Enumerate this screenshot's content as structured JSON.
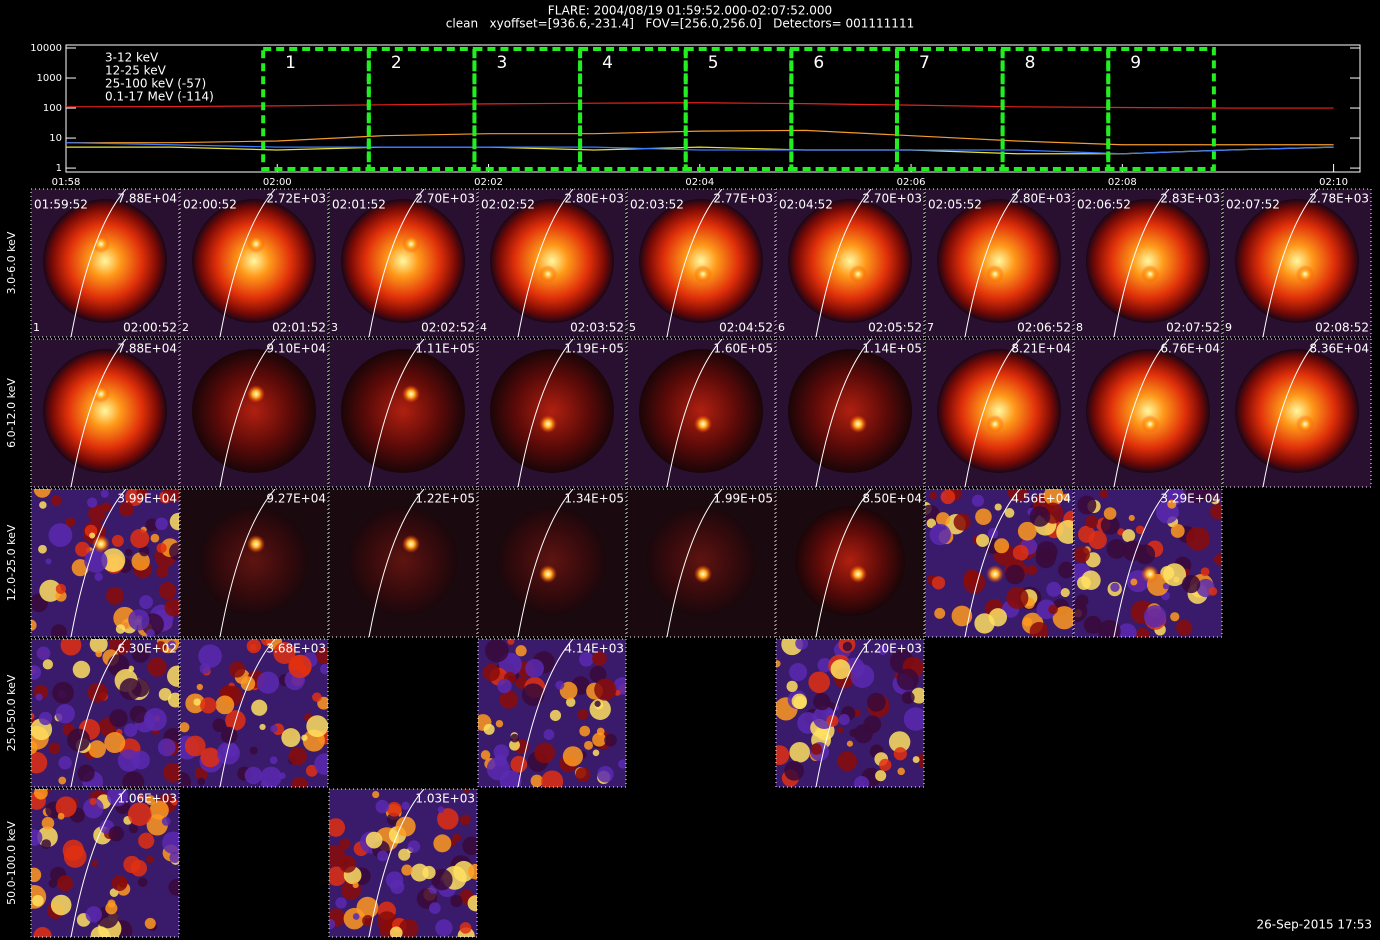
{
  "header": {
    "title": "FLARE: 2004/08/19 01:59:52.000-02:07:52.000",
    "subtitle": "clean   xyoffset=[936.6,-231.4]   FOV=[256.0,256.0]   Detectors= 001111111"
  },
  "chart_data": {
    "type": "line",
    "x": [
      "01:58",
      "01:59",
      "02:00",
      "02:01",
      "02:02",
      "02:03",
      "02:04",
      "02:05",
      "02:06",
      "02:07",
      "02:08",
      "02:09",
      "02:10"
    ],
    "xlim": [
      "01:58",
      "02:10:15"
    ],
    "xticks": [
      "01:58",
      "02:00",
      "02:02",
      "02:04",
      "02:06",
      "02:08",
      "02:10"
    ],
    "ylim": [
      0.74,
      12600
    ],
    "yticks": [
      1,
      10,
      100,
      1000,
      10000
    ],
    "log_y": true,
    "series": [
      {
        "name": "3-12 keV",
        "color": "#e8231e",
        "values": [
          110,
          112,
          118,
          128,
          138,
          145,
          150,
          140,
          125,
          110,
          104,
          100,
          100
        ]
      },
      {
        "name": "12-25 keV",
        "color": "#f39a2e",
        "values": [
          7,
          7,
          8,
          12,
          14,
          14,
          17,
          18,
          12,
          8,
          6,
          6,
          6
        ]
      },
      {
        "name": "25-100 keV (-57)",
        "color": "#e8e03a",
        "values": [
          5,
          5,
          4,
          5,
          5,
          4,
          5,
          4,
          4,
          3,
          3,
          4,
          5
        ]
      },
      {
        "name": "0.1-17 MeV (-114)",
        "color": "#3a7bff",
        "values": [
          7,
          6,
          5,
          5,
          5,
          5,
          4,
          4,
          4,
          4,
          3,
          4,
          5
        ]
      }
    ],
    "interval_labels": [
      "1",
      "2",
      "3",
      "4",
      "5",
      "6",
      "7",
      "8",
      "9"
    ]
  },
  "grid": {
    "row_labels": [
      "3.0-6.0 keV",
      "6.0-12.0 keV",
      "12.0-25.0 keV",
      "25.0-50.0 keV",
      "50.0-100.0 keV"
    ],
    "columns": [
      {
        "index": "1",
        "start": "01:59:52",
        "end": "02:00:52"
      },
      {
        "index": "2",
        "start": "02:00:52",
        "end": "02:01:52"
      },
      {
        "index": "3",
        "start": "02:01:52",
        "end": "02:02:52"
      },
      {
        "index": "4",
        "start": "02:02:52",
        "end": "02:03:52"
      },
      {
        "index": "5",
        "start": "02:03:52",
        "end": "02:04:52"
      },
      {
        "index": "6",
        "start": "02:04:52",
        "end": "02:05:52"
      },
      {
        "index": "7",
        "start": "02:05:52",
        "end": "02:06:52"
      },
      {
        "index": "8",
        "start": "02:06:52",
        "end": "02:07:52"
      },
      {
        "index": "9",
        "start": "02:07:52",
        "end": "02:08:52"
      }
    ],
    "rows": [
      [
        "7.88E+04",
        "2.72E+03",
        "2.70E+03",
        "2.80E+03",
        "2.77E+03",
        "2.70E+03",
        "2.80E+03",
        "2.83E+03",
        "2.78E+03"
      ],
      [
        "7.88E+04",
        "9.10E+04",
        "1.11E+05",
        "1.19E+05",
        "1.60E+05",
        "1.14E+05",
        "8.21E+04",
        "6.76E+04",
        "8.36E+04"
      ],
      [
        "3.99E+04",
        "9.27E+04",
        "1.22E+05",
        "1.34E+05",
        "1.99E+05",
        "8.50E+04",
        "4.56E+04",
        "3.29E+04",
        null
      ],
      [
        "6.30E+02",
        "3.68E+03",
        null,
        "4.14E+03",
        null,
        "1.20E+03",
        null,
        null,
        null
      ],
      [
        "1.06E+03",
        null,
        "1.03E+03",
        null,
        null,
        null,
        null,
        null,
        null
      ]
    ]
  },
  "footer": "26-Sep-2015 17:53"
}
